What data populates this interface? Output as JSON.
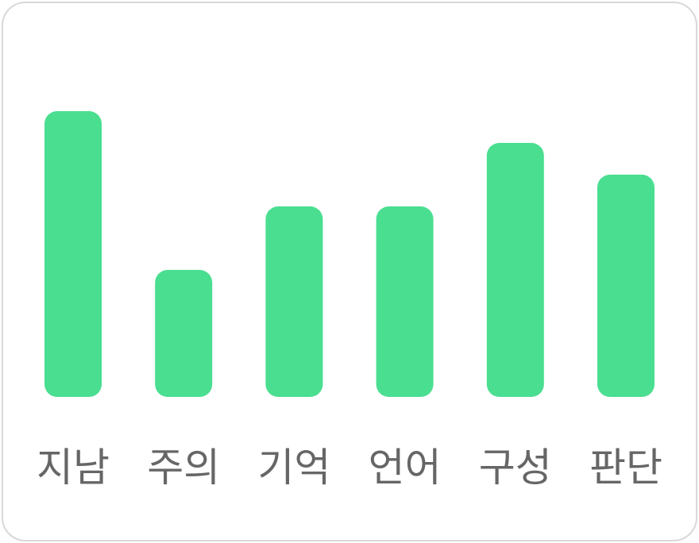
{
  "chart_data": {
    "type": "bar",
    "categories": [
      "지남",
      "주의",
      "기억",
      "언어",
      "구성",
      "판단"
    ],
    "values": [
      9,
      4,
      6,
      6,
      8,
      7
    ],
    "ylim": [
      0,
      9
    ],
    "grid": false,
    "title": "",
    "xlabel": "",
    "ylabel": "",
    "bar_color": "#4ade91",
    "label_color": "#666666",
    "border_color": "#d8d8d8"
  }
}
